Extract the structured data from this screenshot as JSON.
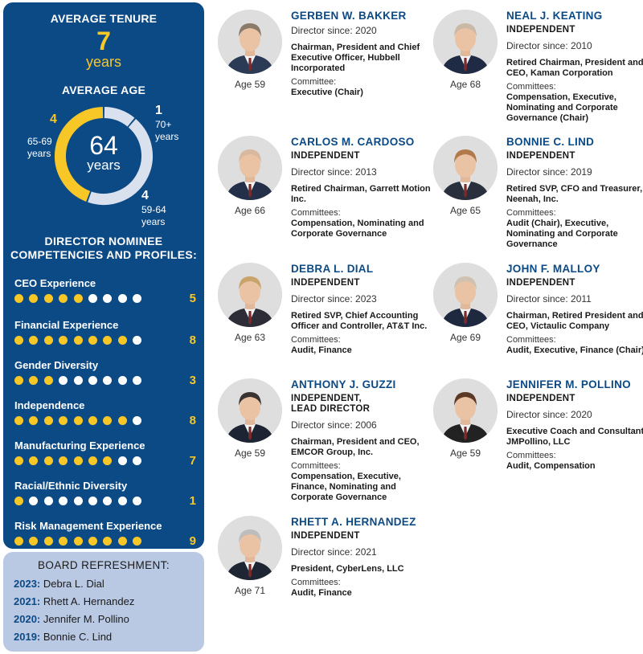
{
  "sidebar": {
    "tenure_heading": "AVERAGE TENURE",
    "tenure_value": "7",
    "tenure_unit": "years",
    "age_heading": "AVERAGE AGE",
    "age_value": "64",
    "age_unit": "years",
    "age_segments": [
      {
        "count": "4",
        "label_line1": "65-69",
        "label_line2": "years",
        "fraction": 0.4444,
        "color": "#f7c728"
      },
      {
        "count": "1",
        "label_line1": "70+",
        "label_line2": "years",
        "fraction": 0.1111,
        "color": "#d9e1ef"
      },
      {
        "count": "4",
        "label_line1": "59-64",
        "label_line2": "years",
        "fraction": 0.4444,
        "color": "#d9e1ef"
      }
    ],
    "competencies_heading_line1": "DIRECTOR NOMINEE",
    "competencies_heading_line2": "COMPETENCIES AND PROFILES:",
    "competencies": [
      {
        "label": "CEO Experience",
        "count": "5",
        "value": 5,
        "total": 9
      },
      {
        "label": "Financial Experience",
        "count": "8",
        "value": 8,
        "total": 9
      },
      {
        "label": "Gender Diversity",
        "count": "3",
        "value": 3,
        "total": 9
      },
      {
        "label": "Independence",
        "count": "8",
        "value": 8,
        "total": 9
      },
      {
        "label": "Manufacturing Experience",
        "count": "7",
        "value": 7,
        "total": 9
      },
      {
        "label": "Racial/Ethnic Diversity",
        "count": "1",
        "value": 1,
        "total": 9
      },
      {
        "label": "Risk Management Experience",
        "count": "9",
        "value": 9,
        "total": 9
      }
    ]
  },
  "refreshment": {
    "title": "BOARD REFRESHMENT:",
    "rows": [
      {
        "year": "2023:",
        "name": "Debra L. Dial"
      },
      {
        "year": "2021:",
        "name": "Rhett A. Hernandez"
      },
      {
        "year": "2020:",
        "name": "Jennifer M. Pollino"
      },
      {
        "year": "2019:",
        "name": "Bonnie C. Lind"
      }
    ]
  },
  "directors": [
    {
      "name": "GERBEN W. BAKKER",
      "status": "",
      "status2": "",
      "since": "Director since: 2020",
      "title": "Chairman, President and Chief Executive Officer, Hubbell Incorporated",
      "committee_label": "Committee:",
      "committees": "Executive (Chair)",
      "age": "Age 59",
      "hair": "#8a7a6a",
      "suit": "#2b3a55"
    },
    {
      "name": "NEAL J. KEATING",
      "status": "INDEPENDENT",
      "status2": "",
      "since": "Director since: 2010",
      "title": "Retired Chairman, President and CEO, Kaman Corporation",
      "committee_label": "Committees:",
      "committees": "Compensation, Executive, Nominating and Corporate Governance (Chair)",
      "age": "Age 68",
      "hair": "#c9b9a6",
      "suit": "#1f2a44"
    },
    {
      "name": "CARLOS M. CARDOSO",
      "status": "INDEPENDENT",
      "status2": "",
      "since": "Director since: 2013",
      "title": "Retired Chairman, Garrett Motion Inc.",
      "committee_label": "Committees:",
      "committees": "Compensation, Nominating and Corporate Governance",
      "age": "Age 66",
      "hair": "#d8b9a0",
      "suit": "#243049"
    },
    {
      "name": "BONNIE C. LIND",
      "status": "INDEPENDENT",
      "status2": "",
      "since": "Director since: 2019",
      "title": "Retired SVP, CFO and Treasurer, Neenah, Inc.",
      "committee_label": "Committees:",
      "committees": "Audit (Chair), Executive, Nominating and Corporate Governance",
      "age": "Age 65",
      "hair": "#b07a4a",
      "suit": "#2a2f3d"
    },
    {
      "name": "DEBRA L. DIAL",
      "status": "INDEPENDENT",
      "status2": "",
      "since": "Director since: 2023",
      "title": "Retired SVP, Chief Accounting Officer and Controller, AT&T Inc.",
      "committee_label": "Committees:",
      "committees": "Audit, Finance",
      "age": "Age 63",
      "hair": "#c9a46a",
      "suit": "#2d2d38"
    },
    {
      "name": "JOHN F. MALLOY",
      "status": "INDEPENDENT",
      "status2": "",
      "since": "Director since: 2011",
      "title": "Chairman, Retired President and CEO, Victaulic Company",
      "committee_label": "Committees:",
      "committees": "Audit, Executive, Finance (Chair)",
      "age": "Age 69",
      "hair": "#d0c2b0",
      "suit": "#1e2940"
    },
    {
      "name": "ANTHONY J. GUZZI",
      "status": "INDEPENDENT,",
      "status2": "LEAD DIRECTOR",
      "since": "Director since: 2006",
      "title": "Chairman, President and CEO, EMCOR Group, Inc.",
      "committee_label": "Committees:",
      "committees": "Compensation, Executive, Finance, Nominating and Corporate Governance",
      "age": "Age 59",
      "hair": "#3a3330",
      "suit": "#1d2433"
    },
    {
      "name": "JENNIFER M. POLLINO",
      "status": "INDEPENDENT",
      "status2": "",
      "since": "Director since: 2020",
      "title": "Executive Coach and Consultant, JMPollino, LLC",
      "committee_label": "Committees:",
      "committees": "Audit, Compensation",
      "age": "Age 59",
      "hair": "#5a3a26",
      "suit": "#222222"
    },
    {
      "name": "RHETT A. HERNANDEZ",
      "status": "INDEPENDENT",
      "status2": "",
      "since": "Director since: 2021",
      "title": "President, CyberLens, LLC",
      "committee_label": "Committees:",
      "committees": "Audit, Finance",
      "age": "Age 71",
      "hair": "#bdbdbd",
      "suit": "#1f2633"
    }
  ]
}
